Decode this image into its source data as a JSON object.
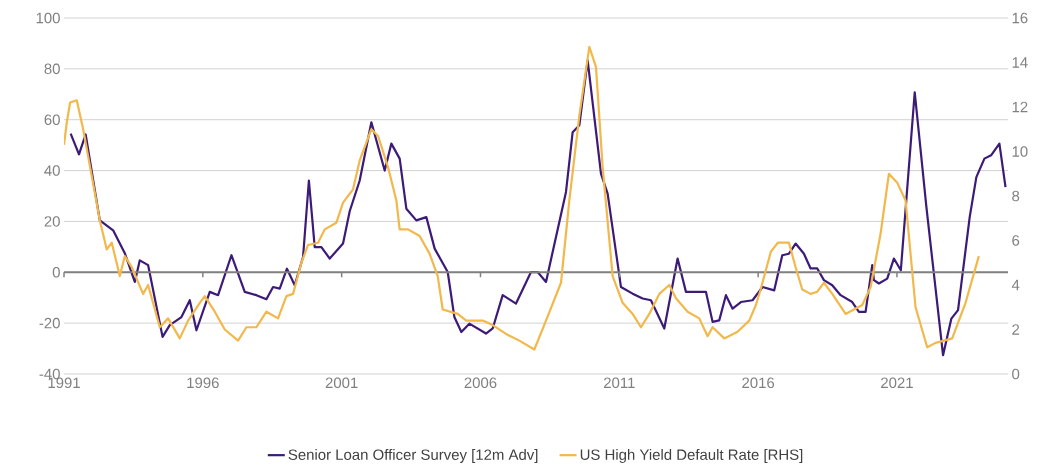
{
  "chart_data": {
    "type": "line",
    "xlim": [
      1991,
      2025
    ],
    "xticks": [
      1991,
      1996,
      2001,
      2006,
      2011,
      2016,
      2021
    ],
    "ylim": [
      -40,
      100
    ],
    "yticks": [
      -40,
      -20,
      0,
      20,
      40,
      60,
      80,
      100
    ],
    "y2lim": [
      0,
      16
    ],
    "y2ticks": [
      0,
      2,
      4,
      6,
      8,
      10,
      12,
      14,
      16
    ],
    "grid": "y",
    "legend": "bottom",
    "marker": "none",
    "ref_lines": [
      {
        "axis": "y",
        "value": 0,
        "color": "#808080"
      }
    ],
    "series": [
      {
        "name": "Senior Loan Officer Survey [12m Adv]",
        "color": "#3c1a78",
        "x": [
          1991.24,
          1991.54,
          1991.78,
          1992.29,
          1992.77,
          1993.19,
          1993.55,
          1993.73,
          1994.03,
          1994.55,
          1994.81,
          1995.23,
          1995.53,
          1995.77,
          1996.25,
          1996.55,
          1997.03,
          1997.51,
          1997.93,
          1998.29,
          1998.53,
          1998.77,
          1999.03,
          1999.31,
          1999.61,
          1999.82,
          2000.03,
          2000.27,
          2000.57,
          2001.05,
          2001.29,
          2001.65,
          2002.07,
          2002.55,
          2002.79,
          2003.09,
          2003.33,
          2003.69,
          2004.05,
          2004.35,
          2004.82,
          2005.06,
          2005.31,
          2005.6,
          2006.2,
          2006.44,
          2006.8,
          2007.28,
          2007.82,
          2008.06,
          2008.36,
          2009.08,
          2009.32,
          2009.56,
          2009.86,
          2010.34,
          2010.58,
          2011.06,
          2011.48,
          2011.84,
          2012.14,
          2012.62,
          2013.1,
          2013.4,
          2013.76,
          2014.12,
          2014.36,
          2014.6,
          2014.84,
          2015.08,
          2015.38,
          2015.8,
          2016.16,
          2016.58,
          2016.87,
          2017.11,
          2017.35,
          2017.65,
          2017.89,
          2018.13,
          2018.37,
          2018.67,
          2018.97,
          2019.39,
          2019.63,
          2019.87,
          2020.11,
          2020.17,
          2020.35,
          2020.65,
          2020.89,
          2021.14,
          2021.64,
          2022.06,
          2022.66,
          2022.96,
          2023.2,
          2023.62,
          2023.86,
          2024.15,
          2024.39,
          2024.69,
          2024.91
        ],
        "values": [
          54.5,
          46.4,
          54.2,
          20.4,
          16.5,
          7.5,
          -3.8,
          4.7,
          2.8,
          -25.4,
          -20.8,
          -17.6,
          -11,
          -22.8,
          -7.7,
          -9,
          6.7,
          -7.7,
          -9,
          -10.6,
          -5.8,
          -6.4,
          1.4,
          -5.1,
          6,
          36.1,
          9.9,
          9.9,
          5.4,
          11.3,
          24,
          36.1,
          59,
          40,
          50.6,
          44.7,
          25,
          20.4,
          21.7,
          9.3,
          0.1,
          -17.6,
          -23.5,
          -20.2,
          -24.1,
          -22.1,
          -9,
          -12.3,
          0.1,
          0.1,
          -3.8,
          31.6,
          55.1,
          57.8,
          83.3,
          38.8,
          30.9,
          -5.8,
          -8.4,
          -10.3,
          -11,
          -22.1,
          5.4,
          -7.7,
          -7.7,
          -7.7,
          -19.5,
          -18.9,
          -9,
          -14.3,
          -11.7,
          -11,
          -5.8,
          -7.1,
          6.7,
          7.3,
          11.3,
          7.3,
          1.5,
          1.5,
          -3.1,
          -5.1,
          -9,
          -11.7,
          -15.6,
          -15.6,
          2.8,
          -3.1,
          -4.4,
          -2.5,
          5.4,
          0.8,
          70.8,
          25.7,
          -32.6,
          -18.2,
          -14.9,
          21.7,
          37.4,
          44.7,
          46,
          50.6,
          33.5
        ]
      },
      {
        "name": "US High Yield Default Rate [RHS]",
        "color": "#f2b84b",
        "axis": "y2",
        "x": [
          1991.0,
          1991.1,
          1991.22,
          1991.46,
          1991.69,
          1992.0,
          1992.29,
          1992.54,
          1992.72,
          1993.01,
          1993.19,
          1993.44,
          1993.85,
          1994.03,
          1994.45,
          1994.75,
          1995.17,
          1995.47,
          1995.89,
          1996.07,
          1996.43,
          1996.79,
          1997.27,
          1997.57,
          1997.93,
          1998.29,
          1998.71,
          1999.01,
          1999.25,
          1999.55,
          1999.79,
          2000.15,
          2000.39,
          2000.81,
          2001.05,
          2001.41,
          2001.65,
          2002.07,
          2002.31,
          2002.67,
          2002.97,
          2003.09,
          2003.39,
          2003.81,
          2004.17,
          2004.46,
          2004.64,
          2005.18,
          2005.49,
          2006.08,
          2006.44,
          2006.92,
          2007.4,
          2007.94,
          2008.36,
          2008.9,
          2009.2,
          2009.56,
          2009.92,
          2010.16,
          2010.4,
          2010.76,
          2011.12,
          2011.48,
          2011.78,
          2012.08,
          2012.44,
          2012.8,
          2013.04,
          2013.46,
          2013.88,
          2014.18,
          2014.36,
          2014.78,
          2015.26,
          2015.68,
          2015.92,
          2016.09,
          2016.46,
          2016.71,
          2017.11,
          2017.35,
          2017.59,
          2017.89,
          2018.13,
          2018.37,
          2018.67,
          2019.15,
          2019.45,
          2019.75,
          2020.05,
          2020.41,
          2020.71,
          2021.01,
          2021.31,
          2021.67,
          2022.09,
          2022.39,
          2022.99,
          2023.47,
          2023.95
        ],
        "values": [
          10.3,
          11.3,
          12.2,
          12.3,
          11.0,
          8.9,
          6.9,
          5.6,
          5.9,
          4.4,
          5.3,
          4.8,
          3.6,
          4.0,
          2.1,
          2.5,
          1.6,
          2.4,
          3.2,
          3.5,
          2.8,
          2.0,
          1.5,
          2.1,
          2.1,
          2.8,
          2.5,
          3.5,
          3.6,
          5.0,
          5.8,
          5.9,
          6.5,
          6.8,
          7.7,
          8.3,
          9.6,
          11.0,
          10.7,
          9.3,
          7.8,
          6.5,
          6.5,
          6.2,
          5.4,
          4.4,
          2.9,
          2.7,
          2.4,
          2.4,
          2.2,
          1.8,
          1.5,
          1.1,
          2.4,
          4.1,
          7.8,
          11.6,
          14.7,
          13.8,
          9.3,
          4.4,
          3.2,
          2.7,
          2.1,
          2.7,
          3.6,
          4.0,
          3.4,
          2.8,
          2.5,
          1.7,
          2.1,
          1.6,
          1.9,
          2.4,
          3.1,
          3.8,
          5.5,
          5.9,
          5.9,
          4.8,
          3.8,
          3.6,
          3.7,
          4.1,
          3.6,
          2.7,
          2.9,
          3.1,
          3.9,
          6.3,
          9.0,
          8.6,
          7.8,
          3.0,
          1.2,
          1.4,
          1.6,
          3.2,
          5.3
        ]
      }
    ]
  }
}
